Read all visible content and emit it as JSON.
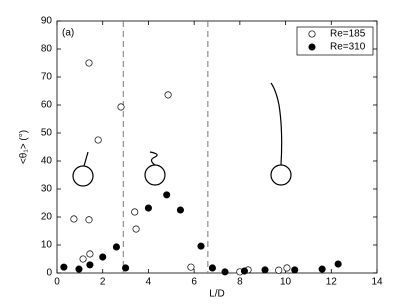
{
  "chart_data": {
    "type": "scatter",
    "annotation": "(a)",
    "xlabel": "L/D",
    "ylabel": "<θ₁> (°)",
    "xlim": [
      0,
      14
    ],
    "xticks": [
      0,
      2,
      4,
      6,
      8,
      10,
      12,
      14
    ],
    "ylim": [
      0,
      90
    ],
    "yticks": [
      0,
      10,
      20,
      30,
      40,
      50,
      60,
      70,
      80,
      90
    ],
    "vlines": [
      2.9,
      6.6
    ],
    "legend": "upper right",
    "series": [
      {
        "name": "Re=185",
        "color": "#ffffff",
        "x": [
          1.4,
          2.8,
          1.8,
          4.86,
          0.74,
          1.4,
          1.14,
          1.44,
          3.4,
          3.46,
          5.86,
          8.36,
          9.7,
          10.06,
          8.0
        ],
        "values": [
          75,
          59.3,
          47.5,
          63.6,
          19.3,
          19,
          5,
          6.8,
          21.8,
          15.7,
          2.1,
          1.1,
          1,
          1.8,
          0.4
        ]
      },
      {
        "name": "Re=310",
        "color": "#000000",
        "x": [
          0.3,
          0.96,
          1.44,
          2.0,
          2.6,
          3.0,
          4.0,
          4.8,
          5.4,
          6.3,
          6.8,
          7.35,
          8.2,
          9.1,
          10.4,
          11.6,
          12.3
        ],
        "values": [
          2.1,
          1.4,
          2.9,
          5.7,
          9.3,
          1.8,
          23.2,
          27.9,
          22.5,
          9.6,
          1.8,
          0.4,
          0.7,
          1.1,
          1.1,
          1.4,
          3.2
        ]
      }
    ]
  }
}
